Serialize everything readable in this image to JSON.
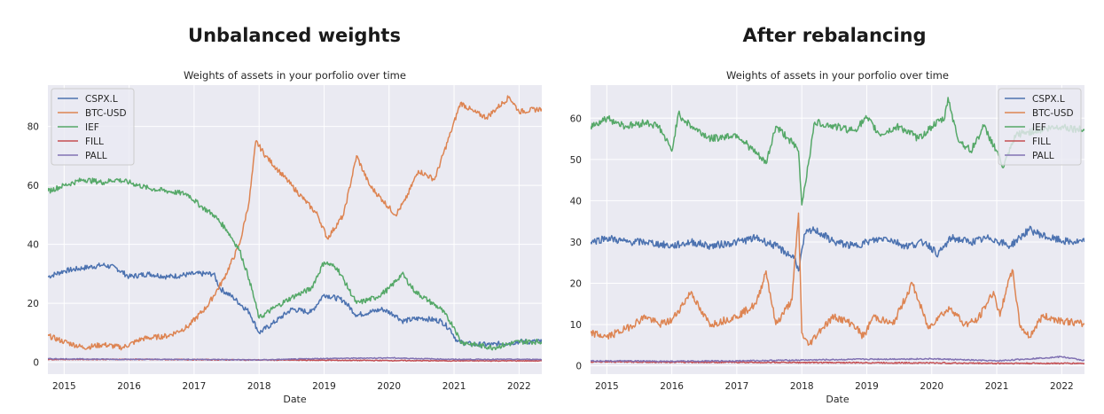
{
  "headings": {
    "left": "Unbalanced weights",
    "right": "After rebalancing"
  },
  "colors": {
    "CSPX.L": "#4c72b0",
    "BTC-USD": "#dd8452",
    "IEF": "#55a868",
    "FILL": "#c44e52",
    "PALL": "#8172b3",
    "plot_bg": "#eaeaf2",
    "grid": "#ffffff"
  },
  "chart_data": [
    {
      "type": "line",
      "title": "Weights of assets in your porfolio over time",
      "xlabel": "Date",
      "ylabel": "",
      "xlim": [
        2014.75,
        2022.35
      ],
      "ylim": [
        -4,
        94
      ],
      "xticks": [
        2015,
        2016,
        2017,
        2018,
        2019,
        2020,
        2021,
        2022
      ],
      "xtick_labels": [
        "2015",
        "2016",
        "2017",
        "2018",
        "2019",
        "2020",
        "2021",
        "2022"
      ],
      "yticks": [
        0,
        20,
        40,
        60,
        80
      ],
      "grid": true,
      "legend_position": "top-left",
      "series": [
        {
          "name": "CSPX.L",
          "x": [
            2014.75,
            2015.0,
            2015.3,
            2015.6,
            2015.8,
            2016.0,
            2016.3,
            2016.6,
            2017.0,
            2017.3,
            2017.4,
            2017.6,
            2017.85,
            2018.0,
            2018.2,
            2018.5,
            2018.8,
            2019.0,
            2019.3,
            2019.5,
            2019.9,
            2020.1,
            2020.2,
            2020.5,
            2020.8,
            2020.95,
            2021.05,
            2021.3,
            2021.6,
            2022.0,
            2022.35
          ],
          "values": [
            29,
            31,
            32,
            33,
            32,
            29,
            30,
            29,
            30,
            30,
            25,
            22,
            17,
            10,
            13,
            18,
            17,
            23,
            21,
            16,
            18,
            16,
            14,
            15,
            14,
            11,
            7,
            6,
            6,
            7,
            7
          ]
        },
        {
          "name": "BTC-USD",
          "x": [
            2014.75,
            2015.0,
            2015.3,
            2015.6,
            2015.9,
            2016.2,
            2016.6,
            2016.9,
            2017.2,
            2017.45,
            2017.7,
            2017.85,
            2017.95,
            2018.1,
            2018.3,
            2018.5,
            2018.7,
            2018.9,
            2019.05,
            2019.3,
            2019.5,
            2019.7,
            2019.9,
            2020.1,
            2020.25,
            2020.45,
            2020.7,
            2020.95,
            2021.1,
            2021.3,
            2021.5,
            2021.65,
            2021.85,
            2022.0,
            2022.35
          ],
          "values": [
            9,
            7,
            5,
            6,
            5,
            8,
            9,
            12,
            19,
            28,
            40,
            55,
            75,
            70,
            65,
            60,
            55,
            50,
            42,
            50,
            70,
            60,
            55,
            50,
            55,
            65,
            62,
            78,
            88,
            85,
            83,
            86,
            90,
            85,
            86
          ]
        },
        {
          "name": "IEF",
          "x": [
            2014.75,
            2015.0,
            2015.3,
            2015.6,
            2015.8,
            2016.0,
            2016.3,
            2016.6,
            2016.9,
            2017.1,
            2017.3,
            2017.5,
            2017.7,
            2017.85,
            2018.0,
            2018.2,
            2018.5,
            2018.8,
            2019.0,
            2019.2,
            2019.5,
            2019.8,
            2020.0,
            2020.2,
            2020.4,
            2020.6,
            2020.8,
            2021.0,
            2021.1,
            2021.3,
            2021.6,
            2022.0,
            2022.35
          ],
          "values": [
            58,
            60,
            62,
            61,
            62,
            61,
            59,
            58,
            57,
            53,
            50,
            45,
            38,
            28,
            15,
            18,
            22,
            25,
            34,
            32,
            20,
            22,
            25,
            30,
            24,
            21,
            18,
            12,
            7,
            6,
            5,
            7,
            7
          ]
        },
        {
          "name": "FILL",
          "x": [
            2014.75,
            2016.0,
            2018.0,
            2020.0,
            2021.0,
            2022.35
          ],
          "values": [
            1,
            1,
            0.8,
            0.6,
            0.5,
            0.5
          ]
        },
        {
          "name": "PALL",
          "x": [
            2014.75,
            2016.0,
            2017.0,
            2018.0,
            2019.0,
            2020.0,
            2021.0,
            2022.35
          ],
          "values": [
            1.2,
            1.0,
            1.0,
            0.8,
            1.3,
            1.5,
            1.0,
            1.0
          ]
        }
      ]
    },
    {
      "type": "line",
      "title": "Weights of assets in your porfolio over time",
      "xlabel": "Date",
      "ylabel": "",
      "xlim": [
        2014.75,
        2022.35
      ],
      "ylim": [
        -2,
        68
      ],
      "xticks": [
        2015,
        2016,
        2017,
        2018,
        2019,
        2020,
        2021,
        2022
      ],
      "xtick_labels": [
        "2015",
        "2016",
        "2017",
        "2018",
        "2019",
        "2020",
        "2021",
        "2022"
      ],
      "yticks": [
        0,
        10,
        20,
        30,
        40,
        50,
        60
      ],
      "grid": true,
      "legend_position": "top-right",
      "series": [
        {
          "name": "CSPX.L",
          "x": [
            2014.75,
            2015.0,
            2015.3,
            2015.6,
            2016.0,
            2016.3,
            2016.6,
            2017.0,
            2017.3,
            2017.6,
            2017.9,
            2017.95,
            2018.05,
            2018.2,
            2018.5,
            2018.8,
            2019.0,
            2019.3,
            2019.6,
            2019.9,
            2020.1,
            2020.3,
            2020.6,
            2020.9,
            2021.2,
            2021.5,
            2021.8,
            2022.1,
            2022.35
          ],
          "values": [
            30,
            31,
            30,
            30,
            29,
            30,
            29,
            30,
            31,
            29,
            26,
            23,
            32,
            33,
            30,
            29,
            30,
            31,
            29,
            30,
            27,
            31,
            30,
            31,
            29,
            33,
            31,
            30,
            30
          ]
        },
        {
          "name": "BTC-USD",
          "x": [
            2014.75,
            2015.0,
            2015.3,
            2015.6,
            2015.8,
            2016.0,
            2016.3,
            2016.45,
            2016.6,
            2017.0,
            2017.3,
            2017.45,
            2017.6,
            2017.85,
            2017.95,
            2018.0,
            2018.1,
            2018.3,
            2018.5,
            2018.8,
            2018.95,
            2019.1,
            2019.4,
            2019.7,
            2019.95,
            2020.1,
            2020.3,
            2020.5,
            2020.7,
            2020.95,
            2021.05,
            2021.15,
            2021.25,
            2021.35,
            2021.5,
            2021.7,
            2022.0,
            2022.35
          ],
          "values": [
            8,
            7,
            9,
            12,
            10,
            11,
            18,
            13,
            10,
            12,
            15,
            23,
            10,
            16,
            37,
            8,
            5,
            9,
            12,
            10,
            7,
            12,
            10,
            20,
            9,
            12,
            14,
            10,
            11,
            18,
            12,
            19,
            23,
            10,
            7,
            12,
            11,
            10
          ]
        },
        {
          "name": "IEF",
          "x": [
            2014.75,
            2015.0,
            2015.3,
            2015.6,
            2015.8,
            2016.0,
            2016.1,
            2016.3,
            2016.6,
            2017.0,
            2017.2,
            2017.45,
            2017.6,
            2017.8,
            2017.95,
            2018.0,
            2018.2,
            2018.5,
            2018.8,
            2019.0,
            2019.2,
            2019.5,
            2019.8,
            2020.0,
            2020.2,
            2020.25,
            2020.4,
            2020.6,
            2020.8,
            2021.0,
            2021.1,
            2021.3,
            2021.6,
            2022.0,
            2022.35
          ],
          "values": [
            58,
            60,
            58,
            59,
            58,
            52,
            61,
            58,
            55,
            56,
            53,
            49,
            58,
            55,
            52,
            39,
            59,
            58,
            57,
            60,
            56,
            58,
            55,
            58,
            60,
            65,
            55,
            52,
            58,
            52,
            48,
            56,
            57,
            58,
            57
          ]
        },
        {
          "name": "FILL",
          "x": [
            2014.75,
            2016.0,
            2018.0,
            2020.0,
            2021.0,
            2022.35
          ],
          "values": [
            1,
            0.9,
            0.8,
            0.7,
            0.6,
            0.6
          ]
        },
        {
          "name": "PALL",
          "x": [
            2014.75,
            2016.0,
            2017.0,
            2018.0,
            2019.0,
            2020.0,
            2021.0,
            2022.0,
            2022.35
          ],
          "values": [
            1.2,
            1.1,
            1.2,
            1.4,
            1.6,
            1.7,
            1.2,
            2.2,
            1.3
          ]
        }
      ]
    }
  ]
}
